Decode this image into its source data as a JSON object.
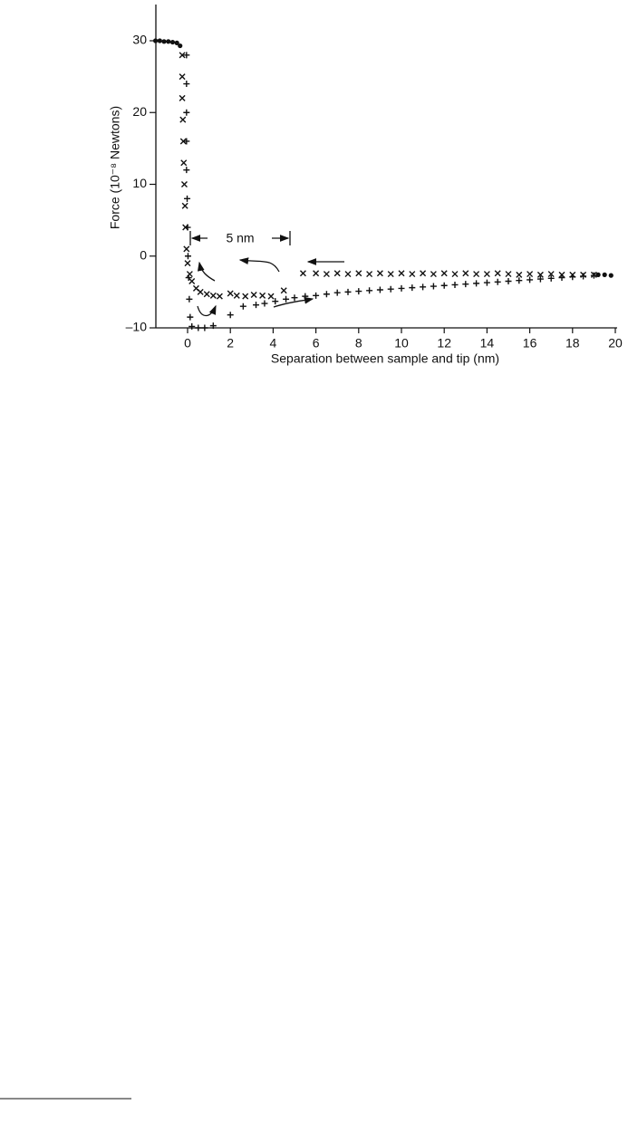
{
  "chart_data": {
    "type": "scatter",
    "xlabel": "Separation between sample and tip (nm)",
    "ylabel": "Force (10⁻⁸ Newtons)",
    "annotation": "5 nm",
    "xlim": [
      -1.5,
      20
    ],
    "ylim": [
      -10,
      35
    ],
    "xticks": [
      0,
      2,
      4,
      6,
      8,
      10,
      12,
      14,
      16,
      18,
      20
    ],
    "yticks": [
      {
        "value": -10,
        "label": "–10"
      },
      0,
      10,
      20,
      30
    ],
    "series": [
      {
        "marker": "x",
        "color": "#111",
        "x": [
          -0.25,
          -0.25,
          -0.25,
          -0.22,
          -0.2,
          -0.18,
          -0.15,
          -0.12,
          -0.1,
          -0.05,
          0,
          0.1,
          0.2,
          0.4,
          0.6,
          0.9,
          1.2,
          1.5,
          2,
          2.3,
          2.7,
          3.1,
          3.5,
          3.9,
          4.5,
          5.4,
          6,
          6.5,
          7,
          7.5,
          8,
          8.5,
          9,
          9.5,
          10,
          10.5,
          11,
          11.5,
          12,
          12.5,
          13,
          13.5,
          14,
          14.5,
          15,
          15.5,
          16,
          16.5,
          17,
          17.5,
          18,
          18.5,
          19
        ],
        "values": [
          28,
          25,
          22,
          19,
          16,
          13,
          10,
          7,
          4,
          1,
          -1,
          -2.5,
          -3.5,
          -4.5,
          -5,
          -5.3,
          -5.5,
          -5.6,
          -5.2,
          -5.5,
          -5.6,
          -5.4,
          -5.5,
          -5.6,
          -4.8,
          -2.4,
          -2.4,
          -2.5,
          -2.4,
          -2.5,
          -2.4,
          -2.5,
          -2.4,
          -2.5,
          -2.4,
          -2.5,
          -2.4,
          -2.5,
          -2.4,
          -2.5,
          -2.4,
          -2.5,
          -2.5,
          -2.4,
          -2.5,
          -2.6,
          -2.5,
          -2.6,
          -2.5,
          -2.6,
          -2.6,
          -2.6,
          -2.6
        ]
      },
      {
        "marker": "+",
        "color": "#111",
        "x": [
          -0.05,
          -0.05,
          -0.05,
          -0.05,
          -0.05,
          -0.02,
          0,
          0.02,
          0.05,
          0.08,
          0.12,
          0.2,
          0.5,
          0.8,
          1.2,
          2,
          2.6,
          3.2,
          3.6,
          4.1,
          4.6,
          5,
          5.5,
          6,
          6.5,
          7,
          7.5,
          8,
          8.5,
          9,
          9.5,
          10,
          10.5,
          11,
          11.5,
          12,
          12.5,
          13,
          13.5,
          14,
          14.5,
          15,
          15.5,
          16,
          16.5,
          17,
          17.5,
          18,
          18.5,
          19
        ],
        "values": [
          28,
          24,
          20,
          16,
          12,
          8,
          4,
          0,
          -3,
          -6,
          -8.5,
          -9.8,
          -10,
          -10,
          -9.7,
          -8.2,
          -7,
          -6.8,
          -6.6,
          -6.3,
          -6,
          -5.8,
          -5.6,
          -5.5,
          -5.3,
          -5.1,
          -5,
          -4.9,
          -4.8,
          -4.7,
          -4.6,
          -4.5,
          -4.4,
          -4.3,
          -4.2,
          -4.1,
          -4,
          -3.9,
          -3.8,
          -3.7,
          -3.6,
          -3.5,
          -3.4,
          -3.3,
          -3.2,
          -3.1,
          -3,
          -2.9,
          -2.8,
          -2.7
        ]
      },
      {
        "marker": "dot",
        "color": "#111",
        "x": [
          -1.5,
          -1.3,
          -1.1,
          -0.9,
          -0.7,
          -0.5,
          -0.35,
          19.2,
          19.5,
          19.8
        ],
        "values": [
          30,
          30,
          29.9,
          29.9,
          29.8,
          29.7,
          29.3,
          -2.6,
          -2.6,
          -2.7
        ]
      }
    ]
  }
}
